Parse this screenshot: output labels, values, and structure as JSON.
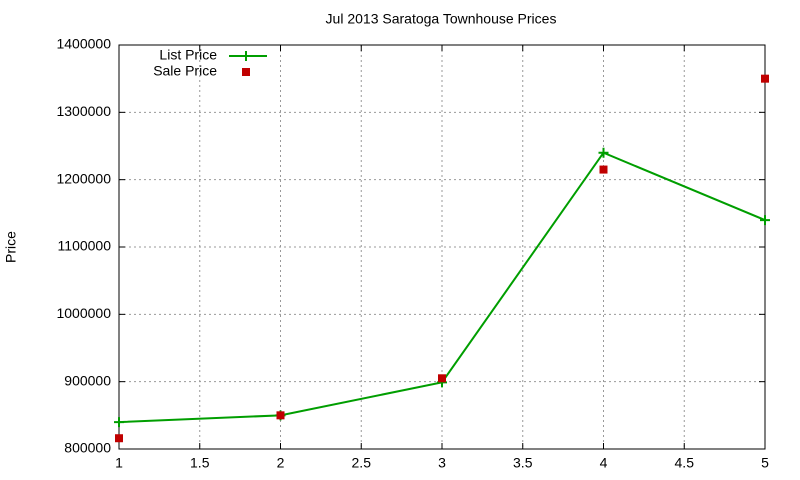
{
  "chart_data": {
    "type": "line",
    "title": "Jul 2013 Saratoga Townhouse Prices",
    "y_label": "Price",
    "x": [
      1,
      2,
      3,
      4,
      5
    ],
    "series": [
      {
        "name": "List Price",
        "color": "#009e00",
        "mode": "lines+points",
        "marker": "plus",
        "values": [
          840000,
          850000,
          899000,
          1240000,
          1140000
        ]
      },
      {
        "name": "Sale Price",
        "color": "#c00000",
        "mode": "points",
        "marker": "square",
        "values": [
          816000,
          850000,
          905000,
          1215000,
          1350000
        ]
      }
    ],
    "xlim": [
      1,
      5
    ],
    "xticks": [
      1,
      1.5,
      2,
      2.5,
      3,
      3.5,
      4,
      4.5,
      5
    ],
    "ylim": [
      800000,
      1400000
    ],
    "yticks": [
      800000,
      900000,
      1000000,
      1100000,
      1200000,
      1300000,
      1400000
    ],
    "grid": true,
    "legend": "top-left"
  }
}
